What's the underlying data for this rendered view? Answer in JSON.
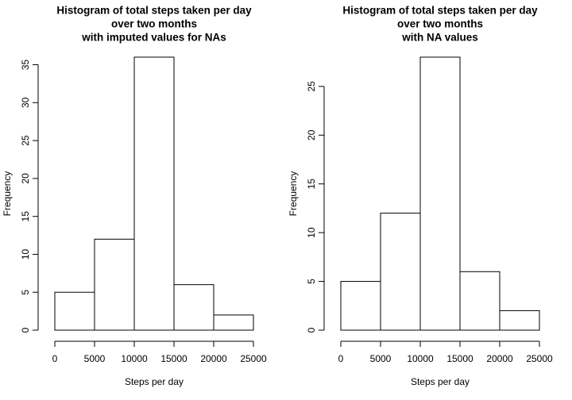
{
  "chart_data": [
    {
      "type": "histogram",
      "title": [
        "Histogram of total steps taken per day",
        "over two months",
        "with imputed values for NAs"
      ],
      "x_label": "Steps per day",
      "y_label": "Frequency",
      "bins": [
        0,
        5000,
        10000,
        15000,
        20000,
        25000
      ],
      "values": [
        5,
        12,
        36,
        6,
        2
      ],
      "xlim": [
        0,
        25000
      ],
      "xticks": [
        0,
        5000,
        10000,
        15000,
        20000,
        25000
      ],
      "ylim": [
        0,
        36
      ],
      "yticks": [
        0,
        5,
        10,
        15,
        20,
        25,
        30,
        35
      ],
      "color": "#ffffff"
    },
    {
      "type": "histogram",
      "title": [
        "Histogram of total steps taken per day",
        "over two months",
        "with NA values"
      ],
      "x_label": "Steps per day",
      "y_label": "Frequency",
      "bins": [
        0,
        5000,
        10000,
        15000,
        20000,
        25000
      ],
      "values": [
        5,
        12,
        28,
        6,
        2
      ],
      "xlim": [
        0,
        25000
      ],
      "xticks": [
        0,
        5000,
        10000,
        15000,
        20000,
        25000
      ],
      "ylim": [
        0,
        28
      ],
      "yticks": [
        0,
        5,
        10,
        15,
        20,
        25
      ],
      "color": "#ffffff"
    }
  ]
}
